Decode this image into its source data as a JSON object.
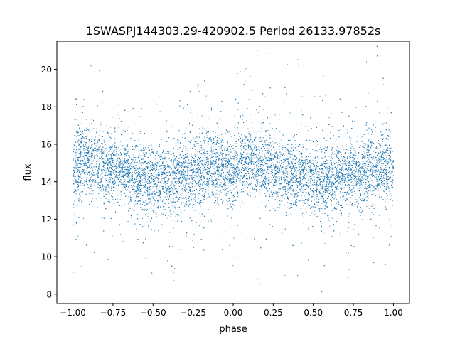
{
  "chart_data": {
    "type": "scatter",
    "title": "1SWASPJ144303.29-420902.5 Period 26133.97852s",
    "xlabel": "phase",
    "ylabel": "flux",
    "xlim": [
      -1.1,
      1.1
    ],
    "ylim": [
      7.5,
      21.5
    ],
    "xticks": [
      -1.0,
      -0.75,
      -0.5,
      -0.25,
      0.0,
      0.25,
      0.5,
      0.75,
      1.0
    ],
    "xtick_labels": [
      "−1.00",
      "−0.75",
      "−0.50",
      "−0.25",
      "0.00",
      "0.25",
      "0.50",
      "0.75",
      "1.00"
    ],
    "yticks": [
      8,
      10,
      12,
      14,
      16,
      18,
      20
    ],
    "ytick_labels": [
      "8",
      "10",
      "12",
      "14",
      "16",
      "18",
      "20"
    ],
    "grid": false,
    "legend": "none",
    "series": [
      {
        "marker_color": "#1f77b4",
        "x_range": [
          -1.0,
          1.0
        ],
        "y_range": [
          8.1,
          21.3
        ],
        "points": [
          [
            -1.0,
            14.6
          ],
          [
            -0.95,
            15.0
          ],
          [
            -0.9,
            15.1
          ],
          [
            -0.85,
            15.0
          ],
          [
            -0.8,
            14.9
          ],
          [
            -0.75,
            14.8
          ],
          [
            -0.7,
            14.7
          ],
          [
            -0.65,
            14.5
          ],
          [
            -0.6,
            14.3
          ],
          [
            -0.55,
            14.2
          ],
          [
            -0.5,
            14.1
          ],
          [
            -0.45,
            14.1
          ],
          [
            -0.4,
            14.1
          ],
          [
            -0.35,
            14.2
          ],
          [
            -0.3,
            14.3
          ],
          [
            -0.25,
            14.4
          ],
          [
            -0.2,
            14.5
          ],
          [
            -0.15,
            14.6
          ],
          [
            -0.1,
            14.7
          ],
          [
            -0.05,
            14.7
          ],
          [
            0.0,
            14.6
          ],
          [
            0.05,
            15.0
          ],
          [
            0.1,
            15.1
          ],
          [
            0.15,
            15.0
          ],
          [
            0.2,
            14.9
          ],
          [
            0.25,
            14.8
          ],
          [
            0.3,
            14.7
          ],
          [
            0.35,
            14.5
          ],
          [
            0.4,
            14.3
          ],
          [
            0.45,
            14.2
          ],
          [
            0.5,
            14.1
          ],
          [
            0.55,
            14.1
          ],
          [
            0.6,
            14.1
          ],
          [
            0.65,
            14.2
          ],
          [
            0.7,
            14.3
          ],
          [
            0.75,
            14.4
          ],
          [
            0.8,
            14.5
          ],
          [
            0.85,
            14.6
          ],
          [
            0.9,
            14.7
          ],
          [
            0.95,
            14.7
          ],
          [
            1.0,
            14.6
          ]
        ]
      }
    ]
  }
}
